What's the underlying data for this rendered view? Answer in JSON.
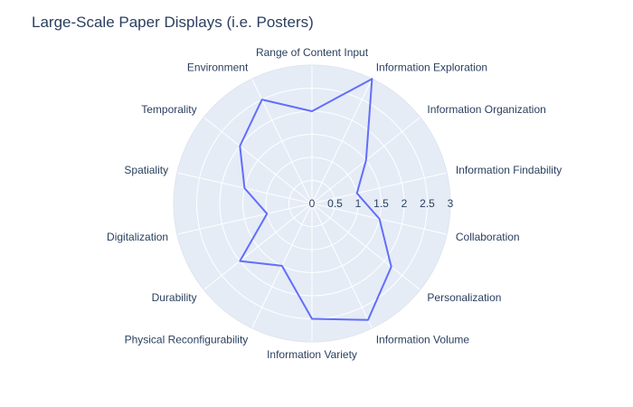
{
  "chart_data": {
    "type": "radar",
    "title": "Large-Scale Paper Displays (i.e. Posters)",
    "axes": [
      "Range of Content Input",
      "Information Exploration",
      "Information Organization",
      "Information Findability",
      "Collaboration",
      "Personalization",
      "Information Volume",
      "Information Variety",
      "Physical Reconfigurability",
      "Durability",
      "Digitalization",
      "Spatiality",
      "Temporality",
      "Environment"
    ],
    "radial_range": [
      0,
      3
    ],
    "radial_ticks": [
      "0",
      "0.5",
      "1",
      "1.5",
      "2",
      "2.5",
      "3"
    ],
    "series": [
      {
        "values": [
          2,
          3,
          1.5,
          1,
          1.5,
          2.2,
          2.8,
          2.5,
          1.5,
          2,
          1,
          1.5,
          2,
          2.5
        ]
      }
    ],
    "line_color": "#636efa",
    "grid_color": "#ffffff",
    "polar_bg_color": "#e5ecf6",
    "grid": true
  }
}
